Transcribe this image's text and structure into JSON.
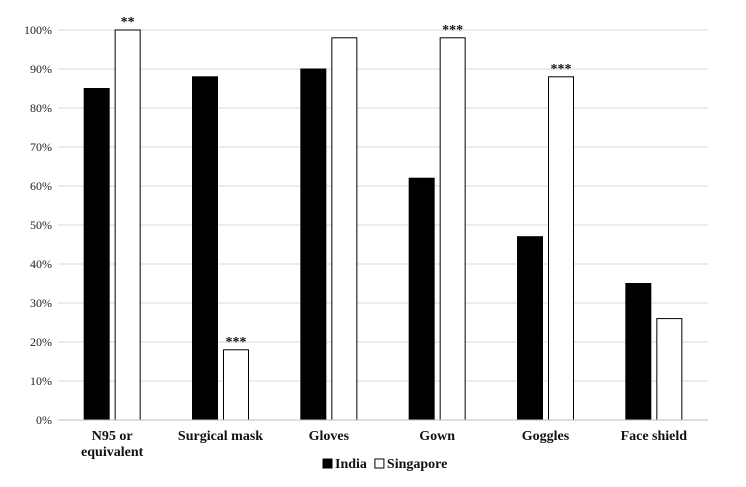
{
  "chart_data": {
    "type": "bar",
    "categories": [
      [
        "N95 or",
        "equivalent"
      ],
      [
        "Surgical mask"
      ],
      [
        "Gloves"
      ],
      [
        "Gown"
      ],
      [
        "Goggles"
      ],
      [
        "Face shield"
      ]
    ],
    "series": [
      {
        "name": "India",
        "color": "#000000",
        "values": [
          85,
          88,
          90,
          62,
          47,
          35
        ]
      },
      {
        "name": "Singapore",
        "color": "#ffffff",
        "values": [
          100,
          18,
          98,
          98,
          88,
          26
        ]
      }
    ],
    "significance": [
      "**",
      "***",
      "",
      "***",
      "***",
      ""
    ],
    "yticks": [
      "0%",
      "10%",
      "20%",
      "30%",
      "40%",
      "50%",
      "60%",
      "70%",
      "80%",
      "90%",
      "100%"
    ],
    "ylim": [
      0,
      100
    ],
    "grid": true,
    "legend_position": "bottom"
  }
}
